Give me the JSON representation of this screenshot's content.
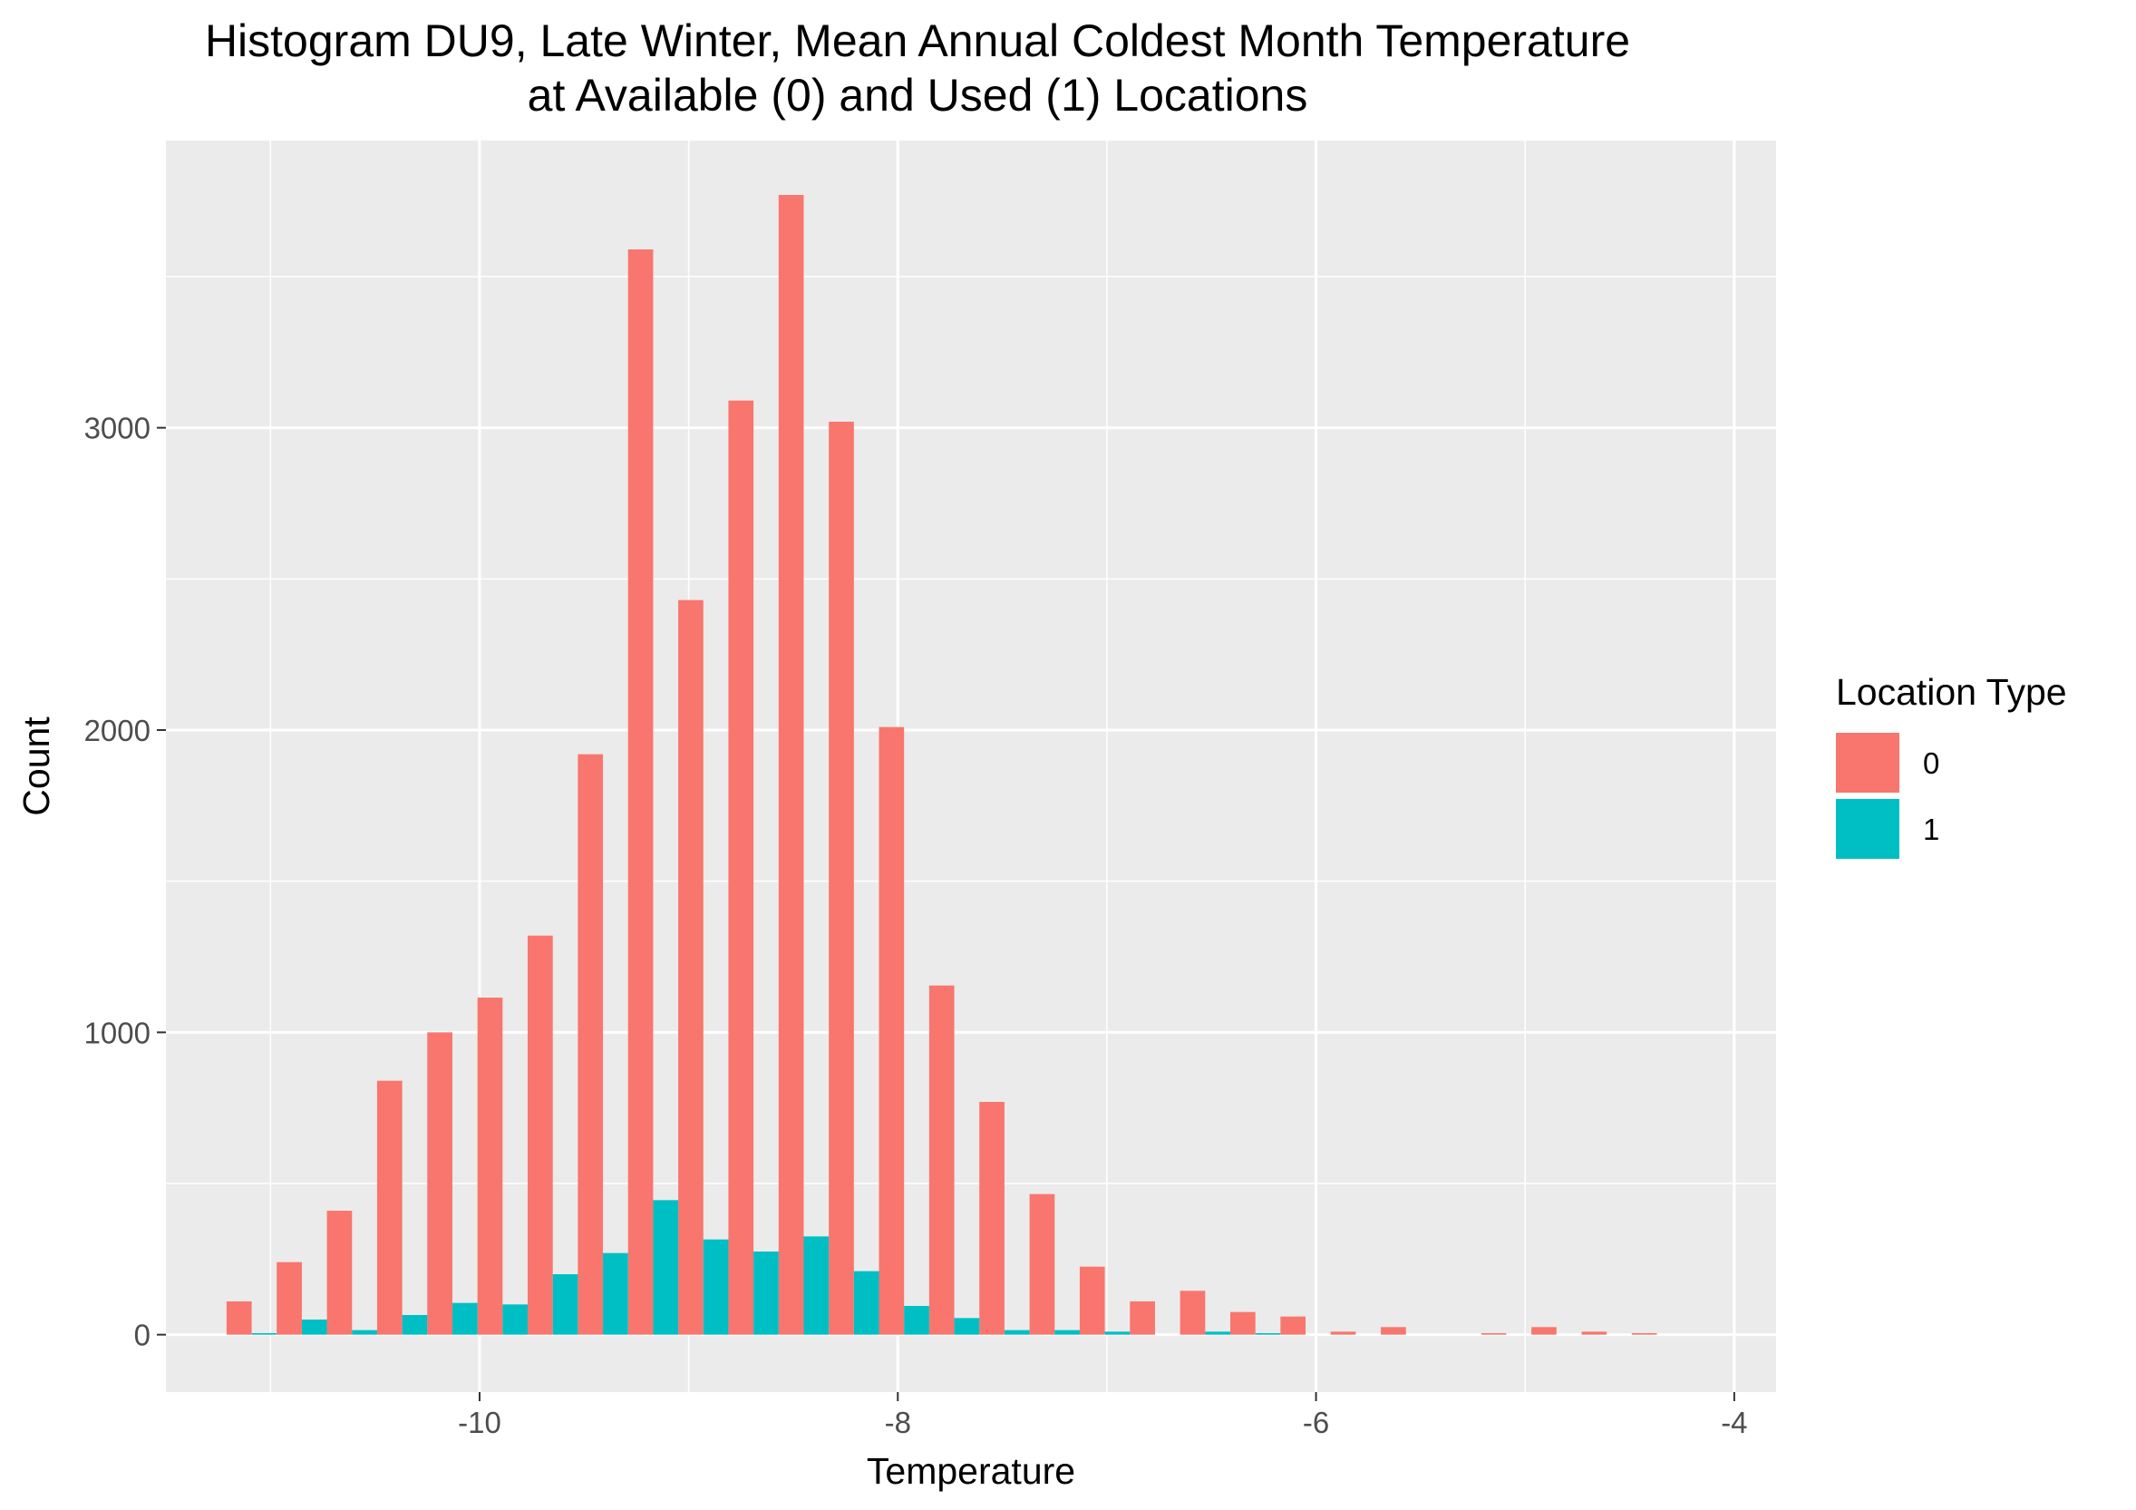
{
  "chart_data": {
    "type": "bar",
    "title_line1": "Histogram DU9, Late Winter, Mean Annual Coldest Month Temperature",
    "title_line2": "at Available (0) and Used (1) Locations",
    "xlabel": "Temperature",
    "ylabel": "Count",
    "xlim": [
      -11.5,
      -3.8
    ],
    "ylim": [
      -190,
      3950
    ],
    "x_ticks": [
      -10,
      -8,
      -6,
      -4
    ],
    "x_tick_labels": [
      "-10",
      "-8",
      "-6",
      "-4"
    ],
    "y_ticks": [
      0,
      1000,
      2000,
      3000
    ],
    "y_tick_labels": [
      "0",
      "1000",
      "2000",
      "3000"
    ],
    "grid": true,
    "bin_width": 0.24,
    "legend": {
      "title": "Location Type",
      "position": "right",
      "entries": [
        {
          "label": "0",
          "color": "#F8766D"
        },
        {
          "label": "1",
          "color": "#00BFC4"
        }
      ]
    },
    "bin_centers": [
      -11.09,
      -10.85,
      -10.61,
      -10.37,
      -10.13,
      -9.89,
      -9.65,
      -9.41,
      -9.17,
      -8.93,
      -8.69,
      -8.45,
      -8.21,
      -7.97,
      -7.73,
      -7.49,
      -7.25,
      -7.01,
      -6.77,
      -6.53,
      -6.29,
      -6.05,
      -5.81,
      -5.57,
      -5.33,
      -5.09,
      -4.85,
      -4.61,
      -4.37
    ],
    "series": [
      {
        "name": "0",
        "color": "#F8766D",
        "values": [
          110,
          240,
          410,
          840,
          1000,
          1115,
          1320,
          1920,
          3590,
          2430,
          3090,
          3770,
          3020,
          2010,
          1155,
          770,
          465,
          225,
          110,
          145,
          75,
          60,
          10,
          25,
          0,
          5,
          25,
          10,
          5
        ]
      },
      {
        "name": "1",
        "color": "#00BFC4",
        "values": [
          5,
          50,
          15,
          65,
          105,
          100,
          200,
          270,
          445,
          315,
          275,
          325,
          210,
          95,
          55,
          15,
          15,
          10,
          0,
          10,
          5,
          0,
          0,
          0,
          0,
          0,
          0,
          0,
          0
        ]
      }
    ]
  }
}
